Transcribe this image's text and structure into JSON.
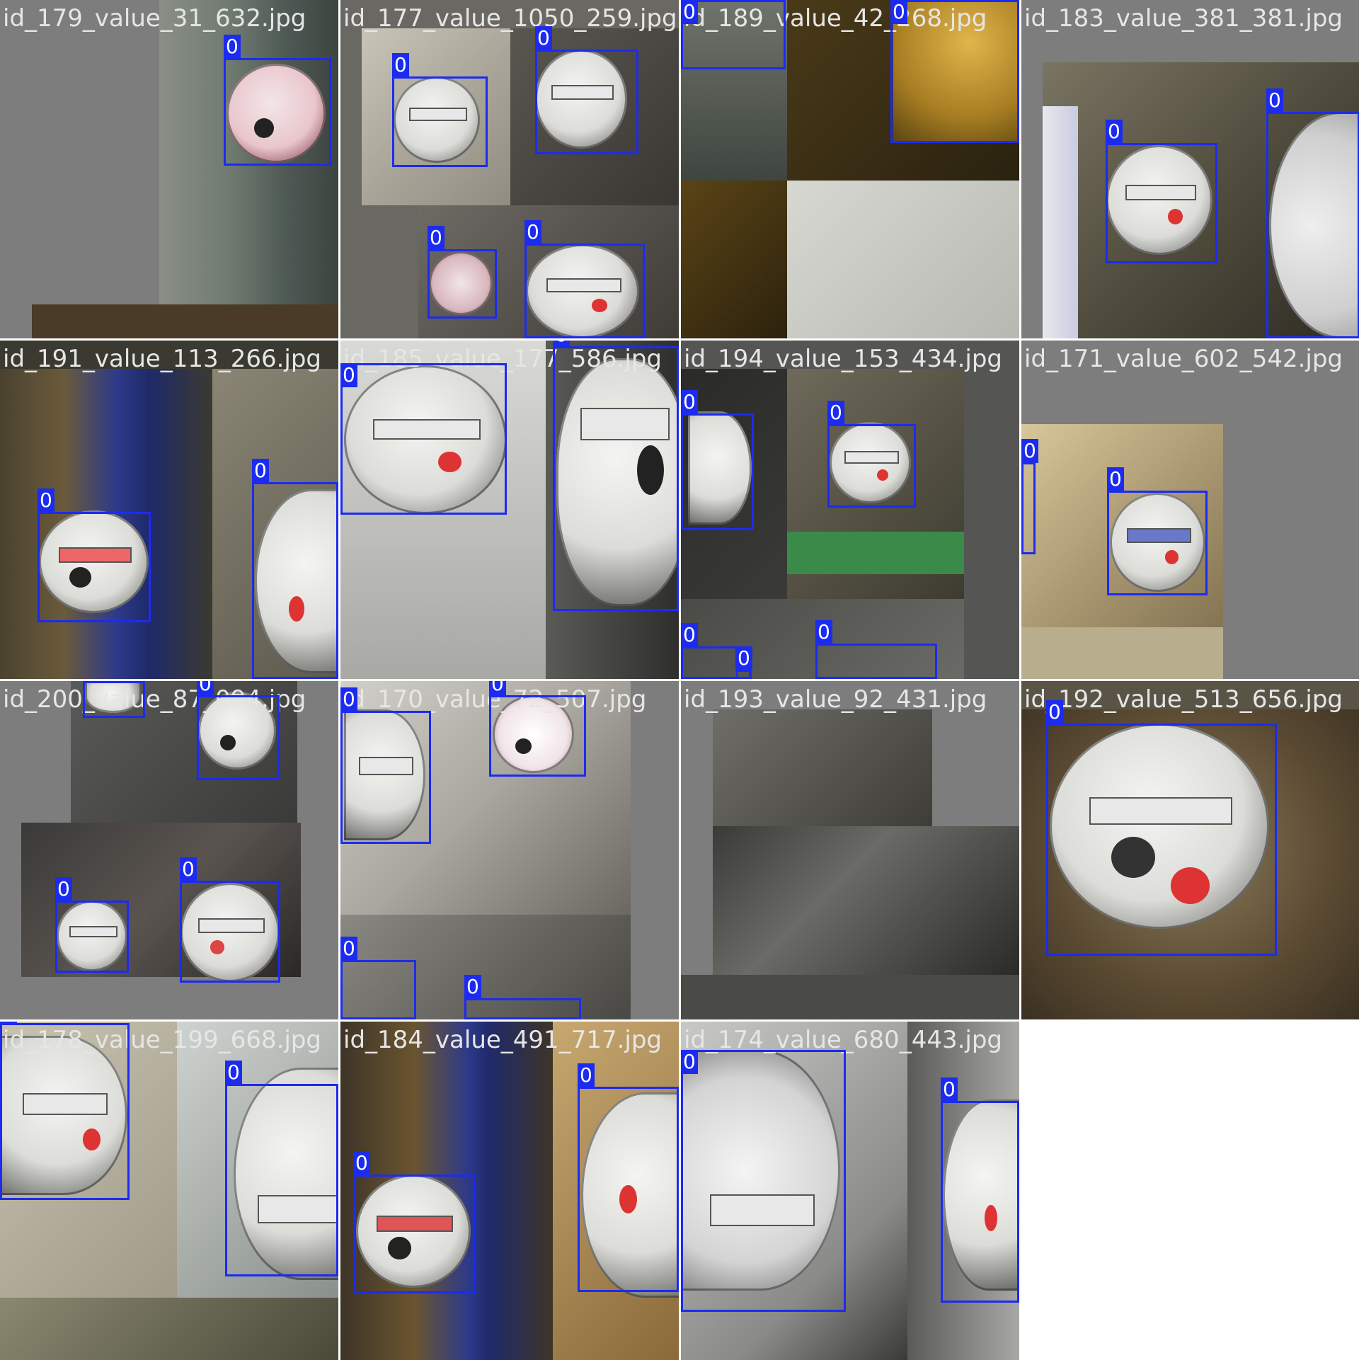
{
  "colors": {
    "box": "#1c2bf0",
    "label_bg": "#1c2bf0",
    "filename_text": "#e6e6e6",
    "pad_gray": "#7d7d7d"
  },
  "class_label": "0",
  "tiles": [
    {
      "name": "id_179_value_31_632.jpg",
      "boxes": 1
    },
    {
      "name": "id_177_value_1050_259.jpg",
      "boxes": 4
    },
    {
      "name": "id_189_value_42_268.jpg",
      "boxes": 2
    },
    {
      "name": "id_183_value_381_381.jpg",
      "boxes": 2
    },
    {
      "name": "id_191_value_113_266.jpg",
      "boxes": 2
    },
    {
      "name": "id_185_value_177_586.jpg",
      "boxes": 2
    },
    {
      "name": "id_194_value_153_434.jpg",
      "boxes": 5
    },
    {
      "name": "id_171_value_602_542.jpg",
      "boxes": 2
    },
    {
      "name": "id_200_value_87_094.jpg",
      "boxes": 4
    },
    {
      "name": "id_170_value_72_507.jpg",
      "boxes": 4
    },
    {
      "name": "id_193_value_92_431.jpg",
      "boxes": 0
    },
    {
      "name": "id_192_value_513_656.jpg",
      "boxes": 1
    },
    {
      "name": "id_178_value_199_668.jpg",
      "boxes": 2
    },
    {
      "name": "id_184_value_491_717.jpg",
      "boxes": 2
    },
    {
      "name": "id_174_value_680_443.jpg",
      "boxes": 2
    }
  ]
}
